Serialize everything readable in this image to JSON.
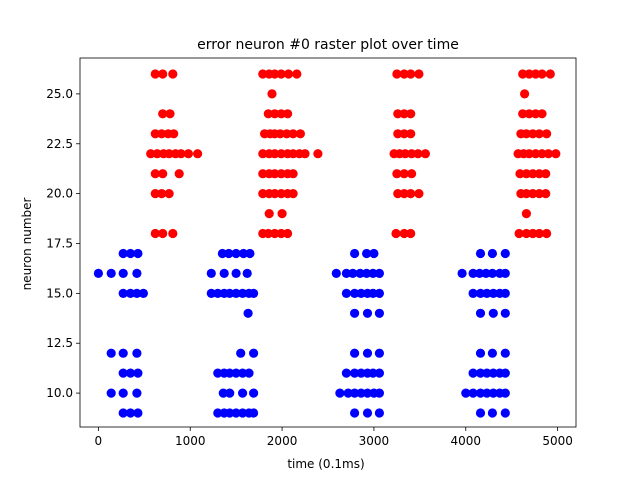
{
  "chart_data": {
    "type": "scatter",
    "title": "error neuron #0 raster plot over time",
    "xlabel": "time (0.1ms)",
    "ylabel": "neuron number",
    "xlim": [
      -200,
      5200
    ],
    "ylim": [
      8.3,
      26.8
    ],
    "xticks": [
      0,
      1000,
      2000,
      3000,
      4000,
      5000
    ],
    "xtick_labels": [
      "0",
      "1000",
      "2000",
      "3000",
      "4000",
      "5000"
    ],
    "yticks": [
      10.0,
      12.5,
      15.0,
      17.5,
      20.0,
      22.5,
      25.0
    ],
    "ytick_labels": [
      "10.0",
      "12.5",
      "15.0",
      "17.5",
      "20.0",
      "22.5",
      "25.0"
    ],
    "grid": false,
    "series": [
      {
        "color": "#0000ff",
        "points": [
          [
            0,
            16
          ],
          [
            140,
            16
          ],
          [
            270,
            16
          ],
          [
            420,
            16
          ],
          [
            270,
            17
          ],
          [
            350,
            17
          ],
          [
            430,
            17
          ],
          [
            270,
            15
          ],
          [
            350,
            15
          ],
          [
            420,
            15
          ],
          [
            490,
            15
          ],
          [
            140,
            12
          ],
          [
            270,
            12
          ],
          [
            420,
            12
          ],
          [
            270,
            11
          ],
          [
            350,
            11
          ],
          [
            430,
            11
          ],
          [
            140,
            10
          ],
          [
            270,
            10
          ],
          [
            420,
            10
          ],
          [
            270,
            9
          ],
          [
            350,
            9
          ],
          [
            430,
            9
          ],
          [
            1230,
            16
          ],
          [
            1370,
            16
          ],
          [
            1500,
            16
          ],
          [
            1620,
            16
          ],
          [
            1350,
            17
          ],
          [
            1420,
            17
          ],
          [
            1500,
            17
          ],
          [
            1580,
            17
          ],
          [
            1650,
            17
          ],
          [
            1230,
            15
          ],
          [
            1300,
            15
          ],
          [
            1370,
            15
          ],
          [
            1430,
            15
          ],
          [
            1500,
            15
          ],
          [
            1570,
            15
          ],
          [
            1640,
            15
          ],
          [
            1690,
            15
          ],
          [
            1630,
            14
          ],
          [
            1550,
            12
          ],
          [
            1690,
            12
          ],
          [
            1300,
            11
          ],
          [
            1370,
            11
          ],
          [
            1430,
            11
          ],
          [
            1500,
            11
          ],
          [
            1570,
            11
          ],
          [
            1640,
            11
          ],
          [
            1360,
            10
          ],
          [
            1430,
            10
          ],
          [
            1570,
            10
          ],
          [
            1690,
            10
          ],
          [
            1300,
            9
          ],
          [
            1370,
            9
          ],
          [
            1430,
            9
          ],
          [
            1500,
            9
          ],
          [
            1570,
            9
          ],
          [
            1640,
            9
          ],
          [
            1690,
            9
          ],
          [
            2590,
            16
          ],
          [
            2700,
            16
          ],
          [
            2770,
            16
          ],
          [
            2850,
            16
          ],
          [
            2920,
            16
          ],
          [
            2990,
            16
          ],
          [
            3060,
            16
          ],
          [
            2790,
            17
          ],
          [
            2920,
            17
          ],
          [
            3000,
            17
          ],
          [
            2700,
            15
          ],
          [
            2790,
            15
          ],
          [
            2860,
            15
          ],
          [
            2930,
            15
          ],
          [
            2990,
            15
          ],
          [
            3060,
            15
          ],
          [
            2790,
            14
          ],
          [
            2930,
            14
          ],
          [
            3060,
            14
          ],
          [
            2790,
            12
          ],
          [
            2930,
            12
          ],
          [
            3060,
            12
          ],
          [
            2700,
            11
          ],
          [
            2790,
            11
          ],
          [
            2860,
            11
          ],
          [
            2930,
            11
          ],
          [
            2990,
            11
          ],
          [
            3060,
            11
          ],
          [
            2630,
            10
          ],
          [
            2720,
            10
          ],
          [
            2790,
            10
          ],
          [
            2860,
            10
          ],
          [
            2930,
            10
          ],
          [
            3000,
            10
          ],
          [
            3060,
            10
          ],
          [
            2790,
            9
          ],
          [
            2930,
            9
          ],
          [
            3060,
            9
          ],
          [
            3960,
            16
          ],
          [
            4080,
            16
          ],
          [
            4150,
            16
          ],
          [
            4220,
            16
          ],
          [
            4290,
            16
          ],
          [
            4370,
            16
          ],
          [
            4430,
            16
          ],
          [
            4160,
            17
          ],
          [
            4290,
            17
          ],
          [
            4430,
            17
          ],
          [
            4080,
            15
          ],
          [
            4160,
            15
          ],
          [
            4230,
            15
          ],
          [
            4300,
            15
          ],
          [
            4370,
            15
          ],
          [
            4430,
            15
          ],
          [
            4160,
            14
          ],
          [
            4300,
            14
          ],
          [
            4430,
            14
          ],
          [
            4160,
            12
          ],
          [
            4290,
            12
          ],
          [
            4430,
            12
          ],
          [
            4080,
            11
          ],
          [
            4160,
            11
          ],
          [
            4230,
            11
          ],
          [
            4300,
            11
          ],
          [
            4370,
            11
          ],
          [
            4430,
            11
          ],
          [
            4000,
            10
          ],
          [
            4080,
            10
          ],
          [
            4160,
            10
          ],
          [
            4230,
            10
          ],
          [
            4300,
            10
          ],
          [
            4370,
            10
          ],
          [
            4430,
            10
          ],
          [
            4160,
            9
          ],
          [
            4290,
            9
          ],
          [
            4430,
            9
          ]
        ]
      },
      {
        "color": "#ff0000",
        "points": [
          [
            620,
            26
          ],
          [
            700,
            26
          ],
          [
            810,
            26
          ],
          [
            700,
            24
          ],
          [
            780,
            24
          ],
          [
            620,
            23
          ],
          [
            690,
            23
          ],
          [
            760,
            23
          ],
          [
            820,
            23
          ],
          [
            570,
            22
          ],
          [
            640,
            22
          ],
          [
            710,
            22
          ],
          [
            770,
            22
          ],
          [
            840,
            22
          ],
          [
            900,
            22
          ],
          [
            980,
            22
          ],
          [
            1080,
            22
          ],
          [
            620,
            21
          ],
          [
            700,
            21
          ],
          [
            880,
            21
          ],
          [
            620,
            20
          ],
          [
            690,
            20
          ],
          [
            770,
            20
          ],
          [
            620,
            18
          ],
          [
            700,
            18
          ],
          [
            810,
            18
          ],
          [
            1790,
            26
          ],
          [
            1860,
            26
          ],
          [
            1920,
            26
          ],
          [
            1990,
            26
          ],
          [
            2070,
            26
          ],
          [
            2160,
            26
          ],
          [
            1890,
            25
          ],
          [
            1850,
            24
          ],
          [
            1920,
            24
          ],
          [
            1990,
            24
          ],
          [
            2060,
            24
          ],
          [
            1810,
            23
          ],
          [
            1870,
            23
          ],
          [
            1920,
            23
          ],
          [
            1980,
            23
          ],
          [
            2050,
            23
          ],
          [
            2120,
            23
          ],
          [
            2200,
            23
          ],
          [
            1790,
            22
          ],
          [
            1860,
            22
          ],
          [
            1920,
            22
          ],
          [
            1990,
            22
          ],
          [
            2060,
            22
          ],
          [
            2120,
            22
          ],
          [
            2190,
            22
          ],
          [
            2250,
            22
          ],
          [
            2390,
            22
          ],
          [
            1790,
            21
          ],
          [
            1860,
            21
          ],
          [
            1920,
            21
          ],
          [
            1990,
            21
          ],
          [
            2060,
            21
          ],
          [
            2120,
            21
          ],
          [
            1790,
            20
          ],
          [
            1860,
            20
          ],
          [
            1920,
            20
          ],
          [
            1990,
            20
          ],
          [
            2060,
            20
          ],
          [
            2120,
            20
          ],
          [
            1860,
            19
          ],
          [
            2000,
            19
          ],
          [
            1790,
            18
          ],
          [
            1850,
            18
          ],
          [
            1920,
            18
          ],
          [
            1990,
            18
          ],
          [
            2060,
            18
          ],
          [
            3250,
            26
          ],
          [
            3330,
            26
          ],
          [
            3400,
            26
          ],
          [
            3490,
            26
          ],
          [
            3260,
            24
          ],
          [
            3330,
            24
          ],
          [
            3400,
            24
          ],
          [
            3260,
            23
          ],
          [
            3330,
            23
          ],
          [
            3400,
            23
          ],
          [
            3220,
            22
          ],
          [
            3280,
            22
          ],
          [
            3340,
            22
          ],
          [
            3410,
            22
          ],
          [
            3480,
            22
          ],
          [
            3560,
            22
          ],
          [
            3250,
            21
          ],
          [
            3330,
            21
          ],
          [
            3410,
            21
          ],
          [
            3260,
            20
          ],
          [
            3330,
            20
          ],
          [
            3400,
            20
          ],
          [
            3490,
            20
          ],
          [
            3240,
            18
          ],
          [
            3330,
            18
          ],
          [
            3400,
            18
          ],
          [
            4620,
            26
          ],
          [
            4690,
            26
          ],
          [
            4760,
            26
          ],
          [
            4830,
            26
          ],
          [
            4920,
            26
          ],
          [
            4640,
            25
          ],
          [
            4620,
            24
          ],
          [
            4690,
            24
          ],
          [
            4760,
            24
          ],
          [
            4830,
            24
          ],
          [
            4600,
            23
          ],
          [
            4660,
            23
          ],
          [
            4730,
            23
          ],
          [
            4800,
            23
          ],
          [
            4880,
            23
          ],
          [
            4570,
            22
          ],
          [
            4630,
            22
          ],
          [
            4690,
            22
          ],
          [
            4760,
            22
          ],
          [
            4830,
            22
          ],
          [
            4900,
            22
          ],
          [
            4980,
            22
          ],
          [
            4590,
            21
          ],
          [
            4660,
            21
          ],
          [
            4730,
            21
          ],
          [
            4800,
            21
          ],
          [
            4870,
            21
          ],
          [
            4600,
            20
          ],
          [
            4660,
            20
          ],
          [
            4730,
            20
          ],
          [
            4800,
            20
          ],
          [
            4870,
            20
          ],
          [
            4660,
            19
          ],
          [
            4580,
            18
          ],
          [
            4660,
            18
          ],
          [
            4730,
            18
          ],
          [
            4800,
            18
          ],
          [
            4880,
            18
          ]
        ]
      }
    ]
  }
}
